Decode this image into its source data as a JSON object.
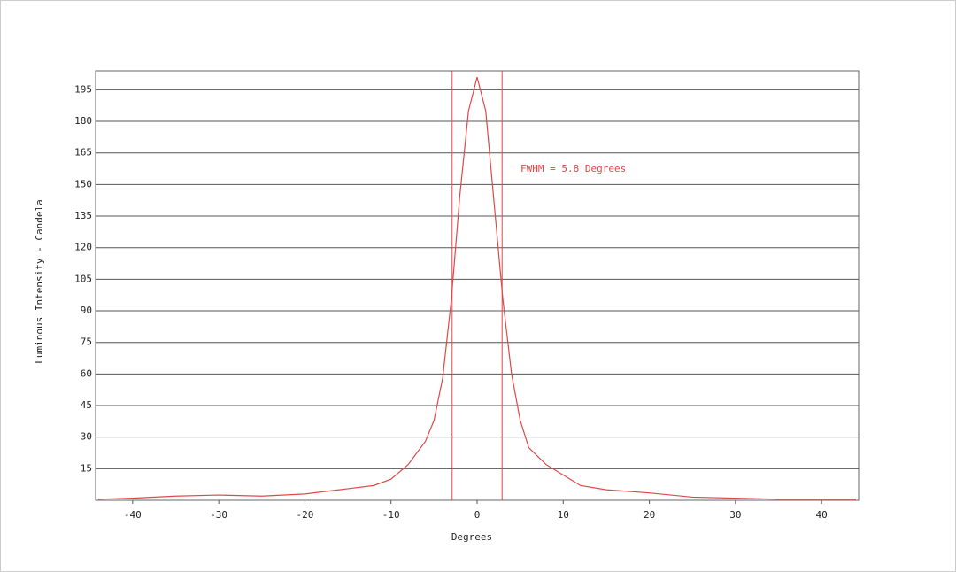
{
  "chart_data": {
    "type": "line",
    "x_label": "Degrees",
    "y_label": "Luminous Intensity - Candela",
    "annotation": "FWHM =  5.8 Degrees",
    "x": [
      -44,
      -40,
      -35,
      -30,
      -25,
      -20,
      -15,
      -12,
      -10,
      -8,
      -6,
      -5,
      -4,
      -3,
      -2,
      -1,
      0,
      1,
      2,
      3,
      4,
      5,
      6,
      8,
      10,
      12,
      15,
      20,
      25,
      30,
      35,
      40,
      44
    ],
    "series": [
      {
        "color": "#e04848",
        "values": [
          0.5,
          1,
          2,
          2.5,
          2,
          3,
          5.5,
          7,
          10,
          17,
          28,
          38,
          58,
          95,
          145,
          185,
          201,
          185,
          140,
          95,
          60,
          38,
          25,
          17,
          12,
          7,
          5,
          3.5,
          1.5,
          1,
          0.5,
          0.5,
          0.5
        ]
      }
    ],
    "vlines": [
      -2.9,
      2.9
    ],
    "xlim": [
      -44.3,
      44.3
    ],
    "xticks": [
      -40,
      -30,
      -20,
      -10,
      0,
      10,
      20,
      30,
      40
    ],
    "ylim": [
      0,
      204
    ],
    "yticks": [
      15,
      30,
      45,
      60,
      75,
      90,
      105,
      120,
      135,
      150,
      165,
      180,
      195
    ],
    "grid": true
  }
}
